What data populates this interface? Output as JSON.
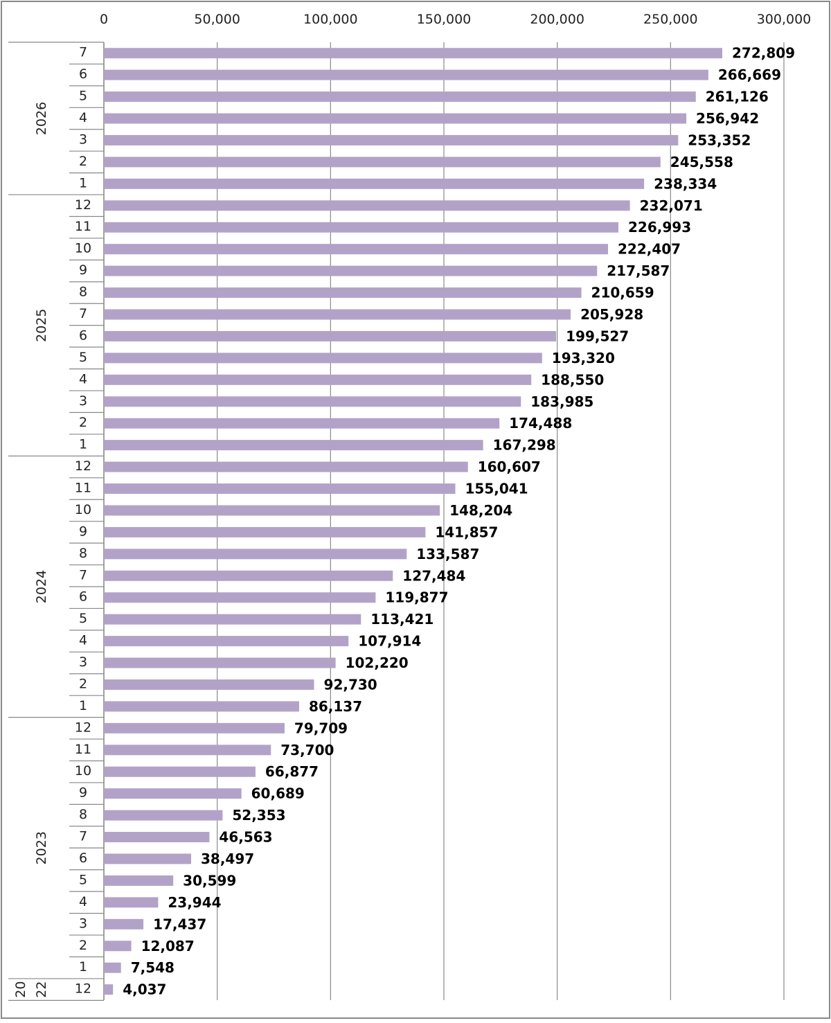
{
  "chart_data": {
    "type": "bar",
    "orientation": "horizontal",
    "title": "",
    "xlabel": "",
    "ylabel": "",
    "xlim": [
      0,
      300000
    ],
    "x_ticks": [
      0,
      50000,
      100000,
      150000,
      200000,
      250000,
      300000
    ],
    "x_tick_labels": [
      "0",
      "50,000",
      "100,000",
      "150,000",
      "200,000",
      "250,000",
      "300,000"
    ],
    "x_axis_position": "top",
    "grid": true,
    "legend": "none",
    "colors": {
      "bar": "#b3a2c8",
      "grid": "#888888",
      "label": "#000000"
    },
    "year_groups": [
      {
        "year": "2026",
        "display": [
          "2026"
        ]
      },
      {
        "year": "2025",
        "display": [
          "2025"
        ]
      },
      {
        "year": "2024",
        "display": [
          "2024"
        ]
      },
      {
        "year": "2023",
        "display": [
          "2023"
        ]
      },
      {
        "year": "2022",
        "display": [
          "20",
          "22"
        ]
      }
    ],
    "categories": [
      {
        "year": "2026",
        "month": "7",
        "value": 272809,
        "label": "272,809"
      },
      {
        "year": "2026",
        "month": "6",
        "value": 266669,
        "label": "266,669"
      },
      {
        "year": "2026",
        "month": "5",
        "value": 261126,
        "label": "261,126"
      },
      {
        "year": "2026",
        "month": "4",
        "value": 256942,
        "label": "256,942"
      },
      {
        "year": "2026",
        "month": "3",
        "value": 253352,
        "label": "253,352"
      },
      {
        "year": "2026",
        "month": "2",
        "value": 245558,
        "label": "245,558"
      },
      {
        "year": "2026",
        "month": "1",
        "value": 238334,
        "label": "238,334"
      },
      {
        "year": "2025",
        "month": "12",
        "value": 232071,
        "label": "232,071"
      },
      {
        "year": "2025",
        "month": "11",
        "value": 226993,
        "label": "226,993"
      },
      {
        "year": "2025",
        "month": "10",
        "value": 222407,
        "label": "222,407"
      },
      {
        "year": "2025",
        "month": "9",
        "value": 217587,
        "label": "217,587"
      },
      {
        "year": "2025",
        "month": "8",
        "value": 210659,
        "label": "210,659"
      },
      {
        "year": "2025",
        "month": "7",
        "value": 205928,
        "label": "205,928"
      },
      {
        "year": "2025",
        "month": "6",
        "value": 199527,
        "label": "199,527"
      },
      {
        "year": "2025",
        "month": "5",
        "value": 193320,
        "label": "193,320"
      },
      {
        "year": "2025",
        "month": "4",
        "value": 188550,
        "label": "188,550"
      },
      {
        "year": "2025",
        "month": "3",
        "value": 183985,
        "label": "183,985"
      },
      {
        "year": "2025",
        "month": "2",
        "value": 174488,
        "label": "174,488"
      },
      {
        "year": "2025",
        "month": "1",
        "value": 167298,
        "label": "167,298"
      },
      {
        "year": "2024",
        "month": "12",
        "value": 160607,
        "label": "160,607"
      },
      {
        "year": "2024",
        "month": "11",
        "value": 155041,
        "label": "155,041"
      },
      {
        "year": "2024",
        "month": "10",
        "value": 148204,
        "label": "148,204"
      },
      {
        "year": "2024",
        "month": "9",
        "value": 141857,
        "label": "141,857"
      },
      {
        "year": "2024",
        "month": "8",
        "value": 133587,
        "label": "133,587"
      },
      {
        "year": "2024",
        "month": "7",
        "value": 127484,
        "label": "127,484"
      },
      {
        "year": "2024",
        "month": "6",
        "value": 119877,
        "label": "119,877"
      },
      {
        "year": "2024",
        "month": "5",
        "value": 113421,
        "label": "113,421"
      },
      {
        "year": "2024",
        "month": "4",
        "value": 107914,
        "label": "107,914"
      },
      {
        "year": "2024",
        "month": "3",
        "value": 102220,
        "label": "102,220"
      },
      {
        "year": "2024",
        "month": "2",
        "value": 92730,
        "label": "92,730"
      },
      {
        "year": "2024",
        "month": "1",
        "value": 86137,
        "label": "86,137"
      },
      {
        "year": "2023",
        "month": "12",
        "value": 79709,
        "label": "79,709"
      },
      {
        "year": "2023",
        "month": "11",
        "value": 73700,
        "label": "73,700"
      },
      {
        "year": "2023",
        "month": "10",
        "value": 66877,
        "label": "66,877"
      },
      {
        "year": "2023",
        "month": "9",
        "value": 60689,
        "label": "60,689"
      },
      {
        "year": "2023",
        "month": "8",
        "value": 52353,
        "label": "52,353"
      },
      {
        "year": "2023",
        "month": "7",
        "value": 46563,
        "label": "46,563"
      },
      {
        "year": "2023",
        "month": "6",
        "value": 38497,
        "label": "38,497"
      },
      {
        "year": "2023",
        "month": "5",
        "value": 30599,
        "label": "30,599"
      },
      {
        "year": "2023",
        "month": "4",
        "value": 23944,
        "label": "23,944"
      },
      {
        "year": "2023",
        "month": "3",
        "value": 17437,
        "label": "17,437"
      },
      {
        "year": "2023",
        "month": "2",
        "value": 12087,
        "label": "12,087"
      },
      {
        "year": "2023",
        "month": "1",
        "value": 7548,
        "label": "7,548"
      },
      {
        "year": "2022",
        "month": "12",
        "value": 4037,
        "label": "4,037"
      }
    ]
  }
}
